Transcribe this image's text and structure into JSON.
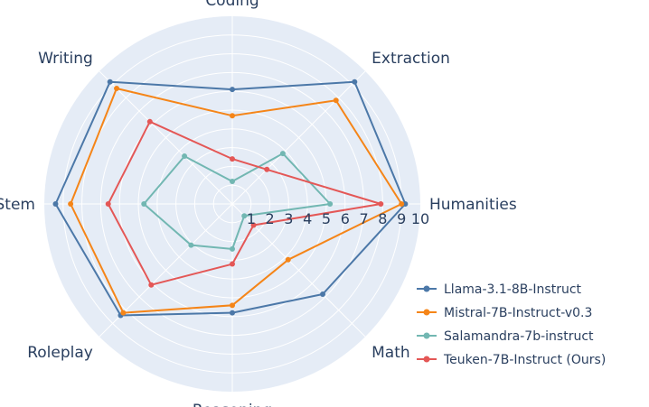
{
  "chart_data": {
    "type": "radar",
    "axes": [
      "Humanities",
      "Extraction",
      "Coding",
      "Writing",
      "Stem",
      "Roleplay",
      "Reasoning",
      "Math"
    ],
    "radial_ticks": [
      1,
      2,
      3,
      4,
      5,
      6,
      7,
      8,
      9,
      10
    ],
    "range": [
      0,
      10
    ],
    "grid": true,
    "legend_position": "bottom-right",
    "series": [
      {
        "name": "Llama-3.1-8B-Instruct",
        "color": "#4c78a8",
        "values": [
          9.2,
          9.2,
          6.1,
          9.2,
          9.4,
          8.4,
          5.8,
          6.8
        ]
      },
      {
        "name": "Mistral-7B-Instruct-v0.3",
        "color": "#f58518",
        "values": [
          9.0,
          7.8,
          4.7,
          8.7,
          8.6,
          8.2,
          5.4,
          4.2
        ]
      },
      {
        "name": "Salamandra-7b-instruct",
        "color": "#72b7b2",
        "values": [
          5.2,
          3.8,
          1.2,
          3.6,
          4.7,
          3.1,
          2.4,
          0.9
        ]
      },
      {
        "name": "Teuken-7B-Instruct (Ours)",
        "color": "#e45756",
        "values": [
          7.9,
          2.6,
          2.4,
          6.2,
          6.6,
          6.1,
          3.2,
          1.6
        ]
      }
    ]
  }
}
